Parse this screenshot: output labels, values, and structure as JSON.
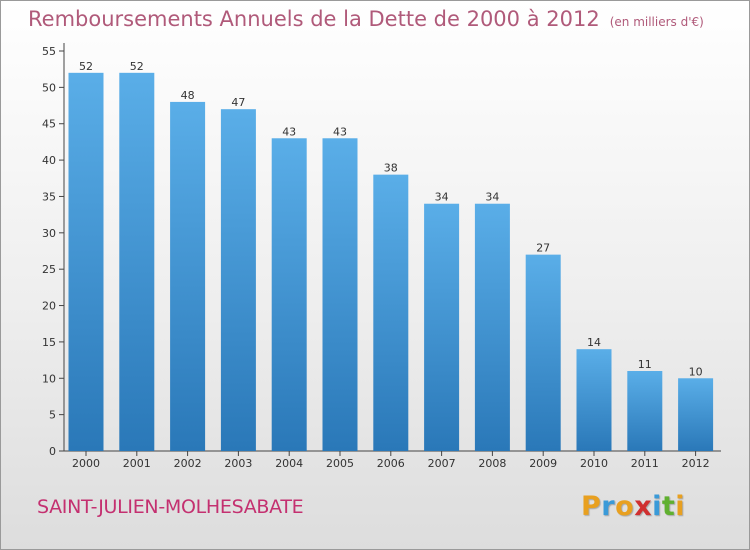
{
  "chart_data": {
    "type": "bar",
    "title": "Remboursements Annuels de la Dette de 2000 à 2012",
    "unit_note": "(en milliers d'€)",
    "xlabel": "",
    "ylabel": "",
    "categories": [
      "2000",
      "2001",
      "2002",
      "2003",
      "2004",
      "2005",
      "2006",
      "2007",
      "2008",
      "2009",
      "2010",
      "2011",
      "2012"
    ],
    "values": [
      52,
      52,
      48,
      47,
      43,
      43,
      38,
      34,
      34,
      27,
      14,
      11,
      10
    ],
    "ylim": [
      0,
      55
    ],
    "yticks": [
      0,
      5,
      10,
      15,
      20,
      25,
      30,
      35,
      40,
      45,
      50,
      55
    ],
    "grid": false,
    "bar_color_top": "#5aaee8",
    "bar_color_bottom": "#2a78b8"
  },
  "commune": "SAINT-JULIEN-MOLHESABATE",
  "logo": {
    "letters": [
      "P",
      "r",
      "o",
      "x",
      "i",
      "t",
      "i"
    ],
    "colors": [
      "#e8a020",
      "#3a9ad8",
      "#e8a020",
      "#d03030",
      "#3a9ad8",
      "#60b030",
      "#e8a020"
    ]
  }
}
